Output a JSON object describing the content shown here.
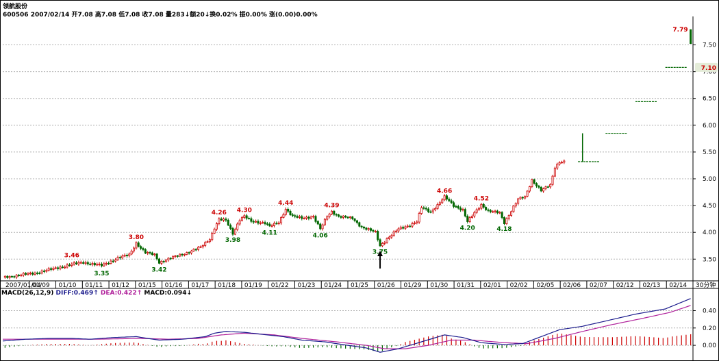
{
  "header": {
    "name": "领航股份",
    "quote_line": "600506 2007/02/14 开7.08 高7.08 低7.08 收7.08 量283↓额20↓换0.02% 振0.00% 涨(0.00)0.00%"
  },
  "colors": {
    "up": "#cc0000",
    "down": "#006600",
    "diff": "#1a1a8c",
    "dea": "#b0219b",
    "grid": "#b0b0b0"
  },
  "chart_data": {
    "type": "candlestick",
    "interval_label": "30分钟",
    "price_axis": {
      "ylim": [
        3.12,
        7.98
      ],
      "ticks": [
        "3.50",
        "4.00",
        "4.50",
        "5.00",
        "5.50",
        "6.00",
        "6.50",
        "7.00",
        "7.50"
      ]
    },
    "dates": [
      "2007/01/04",
      "01/09",
      "01/10",
      "01/11",
      "01/12",
      "01/15",
      "01/16",
      "01/17",
      "01/18",
      "01/19",
      "01/22",
      "01/23",
      "01/24",
      "01/25",
      "01/26",
      "01/29",
      "01/30",
      "01/31",
      "02/01",
      "02/02",
      "02/05",
      "02/06",
      "02/07",
      "02/12",
      "02/13",
      "02/14"
    ],
    "anchors": [
      [
        0,
        3.16
      ],
      [
        14,
        3.24
      ],
      [
        22,
        3.32
      ],
      [
        30,
        3.4
      ],
      [
        35,
        3.44
      ],
      [
        40,
        3.4
      ],
      [
        43,
        3.38
      ],
      [
        50,
        3.52
      ],
      [
        55,
        3.58
      ],
      [
        58,
        3.8
      ],
      [
        62,
        3.62
      ],
      [
        66,
        3.58
      ],
      [
        68,
        3.44
      ],
      [
        73,
        3.52
      ],
      [
        80,
        3.62
      ],
      [
        86,
        3.72
      ],
      [
        90,
        3.88
      ],
      [
        92,
        4.08
      ],
      [
        94,
        4.24
      ],
      [
        97,
        4.22
      ],
      [
        100,
        3.98
      ],
      [
        103,
        4.24
      ],
      [
        105,
        4.3
      ],
      [
        108,
        4.2
      ],
      [
        114,
        4.18
      ],
      [
        116,
        4.11
      ],
      [
        120,
        4.18
      ],
      [
        123,
        4.44
      ],
      [
        126,
        4.3
      ],
      [
        130,
        4.26
      ],
      [
        135,
        4.3
      ],
      [
        138,
        4.06
      ],
      [
        141,
        4.3
      ],
      [
        143,
        4.39
      ],
      [
        146,
        4.3
      ],
      [
        152,
        4.26
      ],
      [
        156,
        4.1
      ],
      [
        162,
        4.0
      ],
      [
        164,
        3.75
      ],
      [
        167,
        3.88
      ],
      [
        172,
        4.06
      ],
      [
        176,
        4.12
      ],
      [
        180,
        4.2
      ],
      [
        182,
        4.46
      ],
      [
        186,
        4.38
      ],
      [
        190,
        4.56
      ],
      [
        192,
        4.66
      ],
      [
        196,
        4.5
      ],
      [
        200,
        4.42
      ],
      [
        202,
        4.2
      ],
      [
        205,
        4.36
      ],
      [
        208,
        4.52
      ],
      [
        211,
        4.4
      ],
      [
        216,
        4.36
      ],
      [
        218,
        4.18
      ],
      [
        222,
        4.48
      ],
      [
        224,
        4.62
      ],
      [
        227,
        4.66
      ],
      [
        230,
        4.98
      ],
      [
        234,
        4.78
      ],
      [
        238,
        4.88
      ],
      [
        240,
        5.22
      ],
      [
        242,
        5.32
      ],
      [
        244,
        5.32
      ]
    ],
    "candles_per_day": 8,
    "extension": [
      {
        "x": 250,
        "o": 5.32,
        "h": 5.32,
        "l": 5.32,
        "c": 5.32
      },
      {
        "x": 252,
        "o": 5.32,
        "h": 5.85,
        "l": 5.32,
        "c": 5.85
      },
      {
        "x": 262,
        "o": 5.85,
        "h": 5.85,
        "l": 5.85,
        "c": 5.85
      },
      {
        "x": 275,
        "o": 6.44,
        "h": 6.44,
        "l": 6.44,
        "c": 6.44
      },
      {
        "x": 288,
        "o": 7.08,
        "h": 7.08,
        "l": 7.08,
        "c": 7.08
      },
      {
        "x": 299,
        "o": 7.79,
        "h": 7.79,
        "l": 7.52,
        "c": 7.52
      }
    ],
    "annotations": [
      {
        "text": "3.46",
        "x": 30,
        "y": 3.46,
        "pos": "above"
      },
      {
        "text": "3.35",
        "x": 43,
        "y": 3.35,
        "pos": "below"
      },
      {
        "text": "3.80",
        "x": 58,
        "y": 3.8,
        "pos": "above"
      },
      {
        "text": "3.42",
        "x": 68,
        "y": 3.42,
        "pos": "below"
      },
      {
        "text": "4.26",
        "x": 94,
        "y": 4.26,
        "pos": "above"
      },
      {
        "text": "3.98",
        "x": 100,
        "y": 3.98,
        "pos": "below"
      },
      {
        "text": "4.30",
        "x": 105,
        "y": 4.3,
        "pos": "above"
      },
      {
        "text": "4.11",
        "x": 116,
        "y": 4.11,
        "pos": "below"
      },
      {
        "text": "4.44",
        "x": 123,
        "y": 4.44,
        "pos": "above"
      },
      {
        "text": "4.06",
        "x": 138,
        "y": 4.06,
        "pos": "below"
      },
      {
        "text": "4.39",
        "x": 143,
        "y": 4.39,
        "pos": "above"
      },
      {
        "text": "3.75",
        "x": 164,
        "y": 3.75,
        "pos": "below"
      },
      {
        "text": "4.66",
        "x": 192,
        "y": 4.66,
        "pos": "above"
      },
      {
        "text": "4.20",
        "x": 202,
        "y": 4.2,
        "pos": "below"
      },
      {
        "text": "4.52",
        "x": 208,
        "y": 4.52,
        "pos": "above"
      },
      {
        "text": "4.18",
        "x": 218,
        "y": 4.18,
        "pos": "below"
      },
      {
        "text": "7.79",
        "x": 299,
        "y": 7.79,
        "pos": "left"
      }
    ],
    "current_price_tag": "7.10",
    "arrow_at": 164,
    "macd": {
      "title": "MACD(26,12,9)",
      "diff_label": "DIFF:0.469↑",
      "dea_label": "DEA:0.422↑",
      "macd_label": "MACD:0.094↓",
      "ylim": [
        -0.11,
        0.57
      ],
      "ticks": [
        "0.00",
        "0.20",
        "0.40"
      ],
      "diff_anchors": [
        [
          0,
          0.05
        ],
        [
          10,
          0.07
        ],
        [
          20,
          0.08
        ],
        [
          30,
          0.08
        ],
        [
          38,
          0.07
        ],
        [
          48,
          0.09
        ],
        [
          58,
          0.1
        ],
        [
          68,
          0.06
        ],
        [
          78,
          0.07
        ],
        [
          88,
          0.1
        ],
        [
          92,
          0.14
        ],
        [
          97,
          0.16
        ],
        [
          105,
          0.15
        ],
        [
          115,
          0.12
        ],
        [
          122,
          0.1
        ],
        [
          130,
          0.06
        ],
        [
          140,
          0.04
        ],
        [
          150,
          0.0
        ],
        [
          158,
          -0.03
        ],
        [
          164,
          -0.08
        ],
        [
          172,
          -0.04
        ],
        [
          182,
          0.04
        ],
        [
          192,
          0.12
        ],
        [
          200,
          0.09
        ],
        [
          208,
          0.03
        ],
        [
          218,
          0.01
        ],
        [
          226,
          0.02
        ],
        [
          234,
          0.1
        ],
        [
          242,
          0.18
        ],
        [
          252,
          0.22
        ],
        [
          262,
          0.28
        ],
        [
          275,
          0.36
        ],
        [
          288,
          0.42
        ],
        [
          299,
          0.54
        ]
      ],
      "dea_anchors": [
        [
          0,
          0.07
        ],
        [
          20,
          0.07
        ],
        [
          40,
          0.07
        ],
        [
          60,
          0.08
        ],
        [
          72,
          0.07
        ],
        [
          85,
          0.08
        ],
        [
          95,
          0.12
        ],
        [
          105,
          0.14
        ],
        [
          118,
          0.12
        ],
        [
          130,
          0.08
        ],
        [
          145,
          0.04
        ],
        [
          158,
          0.0
        ],
        [
          166,
          -0.04
        ],
        [
          175,
          -0.04
        ],
        [
          185,
          0.0
        ],
        [
          195,
          0.06
        ],
        [
          205,
          0.06
        ],
        [
          218,
          0.03
        ],
        [
          228,
          0.02
        ],
        [
          240,
          0.08
        ],
        [
          252,
          0.16
        ],
        [
          265,
          0.24
        ],
        [
          278,
          0.31
        ],
        [
          290,
          0.38
        ],
        [
          299,
          0.46
        ]
      ]
    }
  }
}
